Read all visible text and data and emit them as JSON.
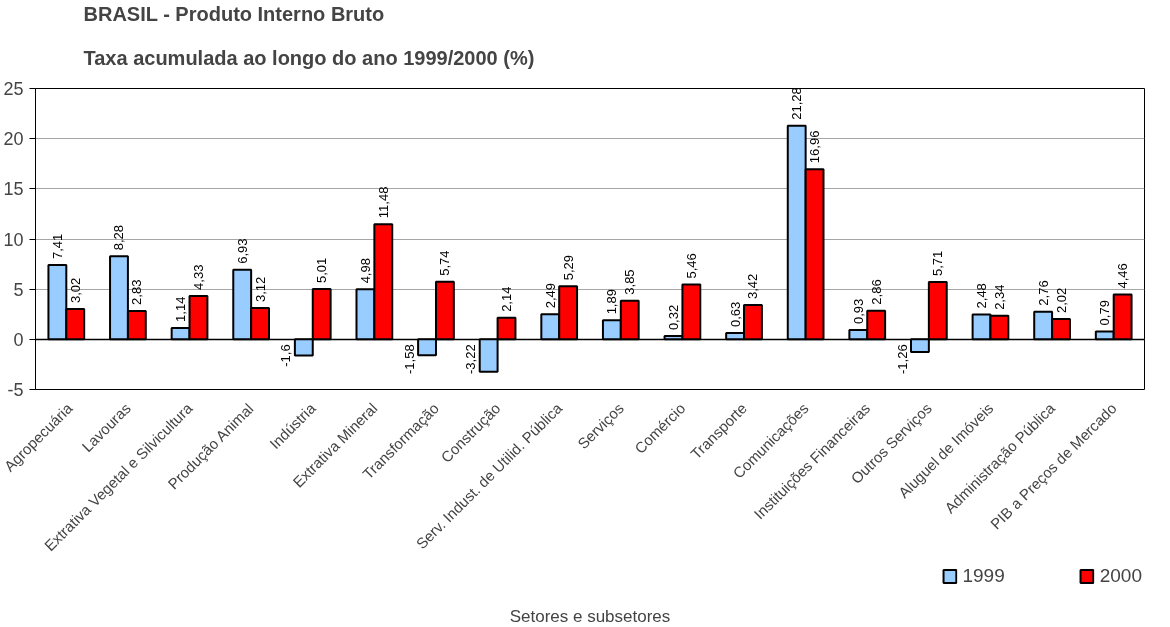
{
  "chart_data": {
    "type": "bar",
    "title": "BRASIL - Produto Interno Bruto",
    "subtitle": "Taxa acumulada ao longo do ano 1999/2000 (%)",
    "xlabel": "Setores e subsetores",
    "categories": [
      "Agropecuária",
      "Lavouras",
      "Extrativa Vegetal e Silvicultura",
      "Produção Animal",
      "Indústria",
      "Extrativa Mineral",
      "Transformação",
      "Construção",
      "Serv. Indust. de Utilid. Pública",
      "Serviços",
      "Comércio",
      "Transporte",
      "Comunicações",
      "Instituições Financeiras",
      "Outros Serviços",
      "Aluguel de Imóveis",
      "Administração Pública",
      "PIB a Preços de Mercado"
    ],
    "series": [
      {
        "name": "1999",
        "color": "#99ccff",
        "values": [
          7.41,
          8.28,
          1.14,
          6.93,
          -1.6,
          4.98,
          -1.58,
          -3.22,
          2.49,
          1.89,
          0.32,
          0.63,
          21.28,
          0.93,
          -1.26,
          2.48,
          2.76,
          0.79
        ],
        "value_labels": [
          "7,41",
          "8,28",
          "1,14",
          "6,93",
          "-1,6",
          "4,98",
          "-1,58",
          "-3,22",
          "2,49",
          "1,89",
          "0,32",
          "0,63",
          "21,28",
          "0,93",
          "-1,26",
          "2,48",
          "2,76",
          "0,79"
        ]
      },
      {
        "name": "2000",
        "color": "#ff0000",
        "values": [
          3.02,
          2.83,
          4.33,
          3.12,
          5.01,
          11.48,
          5.74,
          2.14,
          5.29,
          3.85,
          5.46,
          3.42,
          16.96,
          2.86,
          5.71,
          2.34,
          2.02,
          4.46
        ],
        "value_labels": [
          "3,02",
          "2,83",
          "4,33",
          "3,12",
          "5,01",
          "11,48",
          "5,74",
          "2,14",
          "5,29",
          "3,85",
          "5,46",
          "3,42",
          "16,96",
          "2,86",
          "5,71",
          "2,34",
          "2,02",
          "4,46"
        ]
      }
    ],
    "ylim": [
      -5,
      25
    ],
    "yticks": [
      -5,
      0,
      5,
      10,
      15,
      20,
      25
    ],
    "grid": "y",
    "legend": "bottom right"
  }
}
